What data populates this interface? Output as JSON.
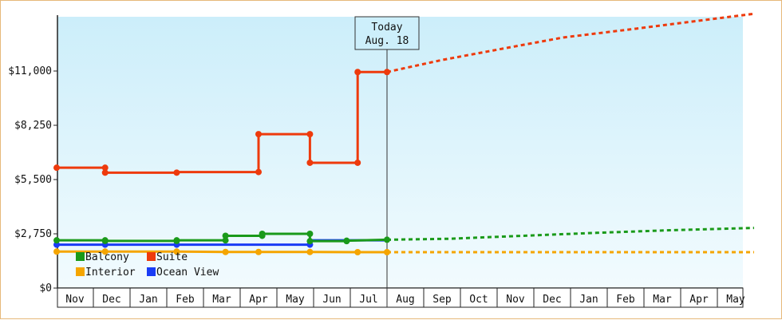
{
  "chart_data": {
    "type": "line",
    "title": "",
    "xlabel": "",
    "ylabel": "",
    "ylim": [
      0,
      13750
    ],
    "y_ticks": [
      {
        "value": 0,
        "label": "$0"
      },
      {
        "value": 2750,
        "label": "$2,750"
      },
      {
        "value": 5500,
        "label": "$5,500"
      },
      {
        "value": 8250,
        "label": "$8,250"
      },
      {
        "value": 11000,
        "label": "$11,000"
      }
    ],
    "months": [
      "Nov",
      "Dec",
      "Jan",
      "Feb",
      "Mar",
      "Apr",
      "May",
      "Jun",
      "Jul",
      "Aug",
      "Sep",
      "Oct",
      "Nov",
      "Dec",
      "Jan",
      "Feb",
      "Mar",
      "Apr",
      "May"
    ],
    "today": {
      "line1": "Today",
      "line2": "Aug. 18",
      "x": 9.0
    },
    "legend_position": "bottom-left",
    "grid": false,
    "colors": {
      "balcony": "#1a9a1a",
      "suite": "#ee3a0c",
      "interior": "#f5a500",
      "ocean_view": "#1a3cf5",
      "plot_bg_top": "#cceefa",
      "plot_bg_bottom": "#f2fbfe"
    },
    "series": [
      {
        "name": "Balcony",
        "key": "balcony",
        "points": [
          [
            0,
            2420
          ],
          [
            1.32,
            2420
          ],
          [
            1.32,
            2390
          ],
          [
            3.27,
            2390
          ],
          [
            3.27,
            2420
          ],
          [
            4.6,
            2420
          ],
          [
            4.6,
            2650
          ],
          [
            5.6,
            2650
          ],
          [
            5.6,
            2750
          ],
          [
            6.9,
            2750
          ],
          [
            6.9,
            2380
          ],
          [
            7.9,
            2380
          ],
          [
            7.9,
            2400
          ],
          [
            9.0,
            2450
          ]
        ],
        "markers": [
          [
            0,
            2420
          ],
          [
            1.32,
            2420
          ],
          [
            1.32,
            2390
          ],
          [
            3.27,
            2390
          ],
          [
            3.27,
            2420
          ],
          [
            4.6,
            2420
          ],
          [
            4.6,
            2650
          ],
          [
            5.6,
            2650
          ],
          [
            5.6,
            2750
          ],
          [
            6.9,
            2750
          ],
          [
            6.9,
            2380
          ],
          [
            7.9,
            2380
          ],
          [
            7.9,
            2400
          ],
          [
            9.0,
            2450
          ]
        ],
        "projection": [
          [
            9.0,
            2450
          ],
          [
            10.7,
            2500
          ],
          [
            12.7,
            2650
          ],
          [
            14.7,
            2800
          ],
          [
            16.7,
            2930
          ],
          [
            19,
            3050
          ]
        ]
      },
      {
        "name": "Suite",
        "key": "suite",
        "points": [
          [
            0,
            6100
          ],
          [
            1.32,
            6100
          ],
          [
            1.32,
            5850
          ],
          [
            3.27,
            5850
          ],
          [
            3.27,
            5880
          ],
          [
            5.5,
            5880
          ],
          [
            5.5,
            7800
          ],
          [
            6.9,
            7800
          ],
          [
            6.9,
            6350
          ],
          [
            8.2,
            6350
          ],
          [
            8.2,
            10950
          ],
          [
            9.0,
            10950
          ]
        ],
        "markers": [
          [
            0,
            6100
          ],
          [
            1.32,
            6100
          ],
          [
            1.32,
            5850
          ],
          [
            3.27,
            5850
          ],
          [
            5.5,
            5880
          ],
          [
            5.5,
            7800
          ],
          [
            6.9,
            7800
          ],
          [
            6.9,
            6350
          ],
          [
            8.2,
            6350
          ],
          [
            8.2,
            10950
          ],
          [
            9.0,
            10950
          ]
        ],
        "projection": [
          [
            9.0,
            10950
          ],
          [
            10.5,
            11560
          ],
          [
            12.2,
            12150
          ],
          [
            13.8,
            12700
          ],
          [
            15.8,
            13150
          ],
          [
            17.8,
            13620
          ],
          [
            19,
            13900
          ]
        ]
      },
      {
        "name": "Interior",
        "key": "interior",
        "points": [
          [
            0,
            1850
          ],
          [
            1.32,
            1850
          ],
          [
            3.27,
            1850
          ],
          [
            4.6,
            1830
          ],
          [
            5.5,
            1830
          ],
          [
            6.9,
            1830
          ],
          [
            8.2,
            1820
          ],
          [
            9.0,
            1820
          ]
        ],
        "markers": [
          [
            0,
            1850
          ],
          [
            1.32,
            1850
          ],
          [
            3.27,
            1850
          ],
          [
            4.6,
            1830
          ],
          [
            5.5,
            1830
          ],
          [
            6.9,
            1830
          ],
          [
            8.2,
            1820
          ],
          [
            9.0,
            1820
          ]
        ],
        "projection": [
          [
            9.0,
            1820
          ],
          [
            19,
            1820
          ]
        ]
      },
      {
        "name": "Ocean View",
        "key": "ocean_view",
        "points": [
          [
            0,
            2200
          ],
          [
            1.32,
            2200
          ],
          [
            3.27,
            2200
          ],
          [
            6.9,
            2200
          ],
          [
            6.9,
            2420
          ],
          [
            9.0,
            2420
          ]
        ],
        "markers": [
          [
            0,
            2200
          ],
          [
            1.32,
            2200
          ],
          [
            3.27,
            2200
          ],
          [
            6.9,
            2200
          ]
        ],
        "projection": []
      }
    ]
  }
}
